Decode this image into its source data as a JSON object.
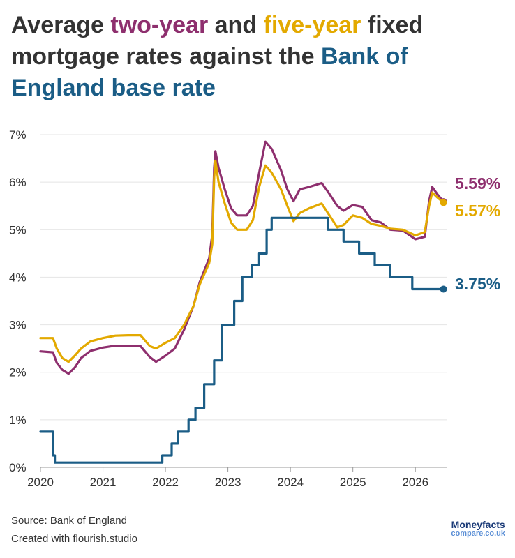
{
  "title": {
    "part1": "Average ",
    "two_year": "two-year",
    "part2": " and ",
    "five_year": "five-year",
    "part3": " fixed mortgage rates against the ",
    "boe": "Bank of England base rate"
  },
  "footer": {
    "source": "Source: Bank of England",
    "created": "Created with flourish.studio"
  },
  "logo": {
    "line1": "Moneyfacts",
    "line2": "compare.co.uk"
  },
  "colors": {
    "two_year": "#8e2f6e",
    "five_year": "#e3a900",
    "base_rate": "#1b5d86",
    "grid": "#e4e4e4",
    "text": "#333333"
  },
  "chart_data": {
    "type": "line",
    "x_ticks": [
      "2020",
      "2021",
      "2022",
      "2023",
      "2024",
      "2025",
      "2026"
    ],
    "y_ticks": [
      "0%",
      "1%",
      "2%",
      "3%",
      "4%",
      "5%",
      "6%",
      "7%"
    ],
    "xlim": [
      2020.0,
      2026.5
    ],
    "ylim": [
      0,
      7
    ],
    "grid": true,
    "series": [
      {
        "key": "two_year",
        "end_label": "5.59%",
        "points": [
          [
            2020.0,
            2.44
          ],
          [
            2020.2,
            2.42
          ],
          [
            2020.26,
            2.2
          ],
          [
            2020.35,
            2.05
          ],
          [
            2020.45,
            1.97
          ],
          [
            2020.55,
            2.1
          ],
          [
            2020.65,
            2.3
          ],
          [
            2020.8,
            2.45
          ],
          [
            2021.0,
            2.52
          ],
          [
            2021.2,
            2.56
          ],
          [
            2021.4,
            2.56
          ],
          [
            2021.6,
            2.55
          ],
          [
            2021.75,
            2.32
          ],
          [
            2021.85,
            2.22
          ],
          [
            2022.0,
            2.35
          ],
          [
            2022.15,
            2.5
          ],
          [
            2022.3,
            2.9
          ],
          [
            2022.45,
            3.4
          ],
          [
            2022.55,
            3.9
          ],
          [
            2022.7,
            4.4
          ],
          [
            2022.75,
            4.9
          ],
          [
            2022.78,
            6.3
          ],
          [
            2022.8,
            6.65
          ],
          [
            2022.85,
            6.3
          ],
          [
            2022.95,
            5.85
          ],
          [
            2023.05,
            5.45
          ],
          [
            2023.15,
            5.3
          ],
          [
            2023.3,
            5.3
          ],
          [
            2023.4,
            5.5
          ],
          [
            2023.5,
            6.2
          ],
          [
            2023.6,
            6.85
          ],
          [
            2023.7,
            6.7
          ],
          [
            2023.85,
            6.25
          ],
          [
            2023.95,
            5.85
          ],
          [
            2024.05,
            5.6
          ],
          [
            2024.15,
            5.85
          ],
          [
            2024.3,
            5.9
          ],
          [
            2024.5,
            5.98
          ],
          [
            2024.6,
            5.8
          ],
          [
            2024.75,
            5.5
          ],
          [
            2024.85,
            5.4
          ],
          [
            2025.0,
            5.52
          ],
          [
            2025.15,
            5.48
          ],
          [
            2025.3,
            5.2
          ],
          [
            2025.45,
            5.15
          ],
          [
            2025.6,
            5.0
          ],
          [
            2025.8,
            4.98
          ],
          [
            2026.0,
            4.8
          ],
          [
            2026.15,
            4.85
          ],
          [
            2026.22,
            5.6
          ],
          [
            2026.27,
            5.9
          ],
          [
            2026.35,
            5.75
          ],
          [
            2026.45,
            5.59
          ]
        ]
      },
      {
        "key": "five_year",
        "end_label": "5.57%",
        "points": [
          [
            2020.0,
            2.72
          ],
          [
            2020.2,
            2.72
          ],
          [
            2020.26,
            2.5
          ],
          [
            2020.35,
            2.3
          ],
          [
            2020.45,
            2.22
          ],
          [
            2020.55,
            2.35
          ],
          [
            2020.65,
            2.5
          ],
          [
            2020.8,
            2.65
          ],
          [
            2021.0,
            2.72
          ],
          [
            2021.2,
            2.77
          ],
          [
            2021.4,
            2.78
          ],
          [
            2021.6,
            2.78
          ],
          [
            2021.75,
            2.55
          ],
          [
            2021.85,
            2.5
          ],
          [
            2022.0,
            2.62
          ],
          [
            2022.15,
            2.72
          ],
          [
            2022.3,
            3.0
          ],
          [
            2022.45,
            3.4
          ],
          [
            2022.55,
            3.85
          ],
          [
            2022.7,
            4.3
          ],
          [
            2022.75,
            4.7
          ],
          [
            2022.78,
            6.1
          ],
          [
            2022.8,
            6.45
          ],
          [
            2022.85,
            6.0
          ],
          [
            2022.95,
            5.55
          ],
          [
            2023.05,
            5.15
          ],
          [
            2023.15,
            5.0
          ],
          [
            2023.3,
            5.0
          ],
          [
            2023.4,
            5.2
          ],
          [
            2023.5,
            5.9
          ],
          [
            2023.6,
            6.35
          ],
          [
            2023.7,
            6.2
          ],
          [
            2023.85,
            5.85
          ],
          [
            2023.95,
            5.5
          ],
          [
            2024.05,
            5.18
          ],
          [
            2024.15,
            5.35
          ],
          [
            2024.3,
            5.45
          ],
          [
            2024.5,
            5.55
          ],
          [
            2024.6,
            5.35
          ],
          [
            2024.75,
            5.05
          ],
          [
            2024.85,
            5.1
          ],
          [
            2025.0,
            5.3
          ],
          [
            2025.15,
            5.25
          ],
          [
            2025.3,
            5.12
          ],
          [
            2025.45,
            5.08
          ],
          [
            2025.6,
            5.02
          ],
          [
            2025.8,
            5.0
          ],
          [
            2026.0,
            4.88
          ],
          [
            2026.15,
            4.95
          ],
          [
            2026.22,
            5.5
          ],
          [
            2026.27,
            5.78
          ],
          [
            2026.35,
            5.68
          ],
          [
            2026.45,
            5.57
          ]
        ]
      },
      {
        "key": "base_rate",
        "end_label": "3.75%",
        "step": true,
        "points": [
          [
            2020.0,
            0.75
          ],
          [
            2020.2,
            0.25
          ],
          [
            2020.23,
            0.1
          ],
          [
            2021.95,
            0.25
          ],
          [
            2022.1,
            0.5
          ],
          [
            2022.2,
            0.75
          ],
          [
            2022.37,
            1.0
          ],
          [
            2022.48,
            1.25
          ],
          [
            2022.62,
            1.75
          ],
          [
            2022.78,
            2.25
          ],
          [
            2022.9,
            3.0
          ],
          [
            2023.1,
            3.5
          ],
          [
            2023.23,
            4.0
          ],
          [
            2023.38,
            4.25
          ],
          [
            2023.5,
            4.5
          ],
          [
            2023.62,
            5.0
          ],
          [
            2023.7,
            5.25
          ],
          [
            2024.6,
            5.0
          ],
          [
            2024.85,
            4.75
          ],
          [
            2025.1,
            4.5
          ],
          [
            2025.35,
            4.25
          ],
          [
            2025.6,
            4.0
          ],
          [
            2025.95,
            3.75
          ],
          [
            2026.45,
            3.75
          ]
        ]
      }
    ]
  }
}
